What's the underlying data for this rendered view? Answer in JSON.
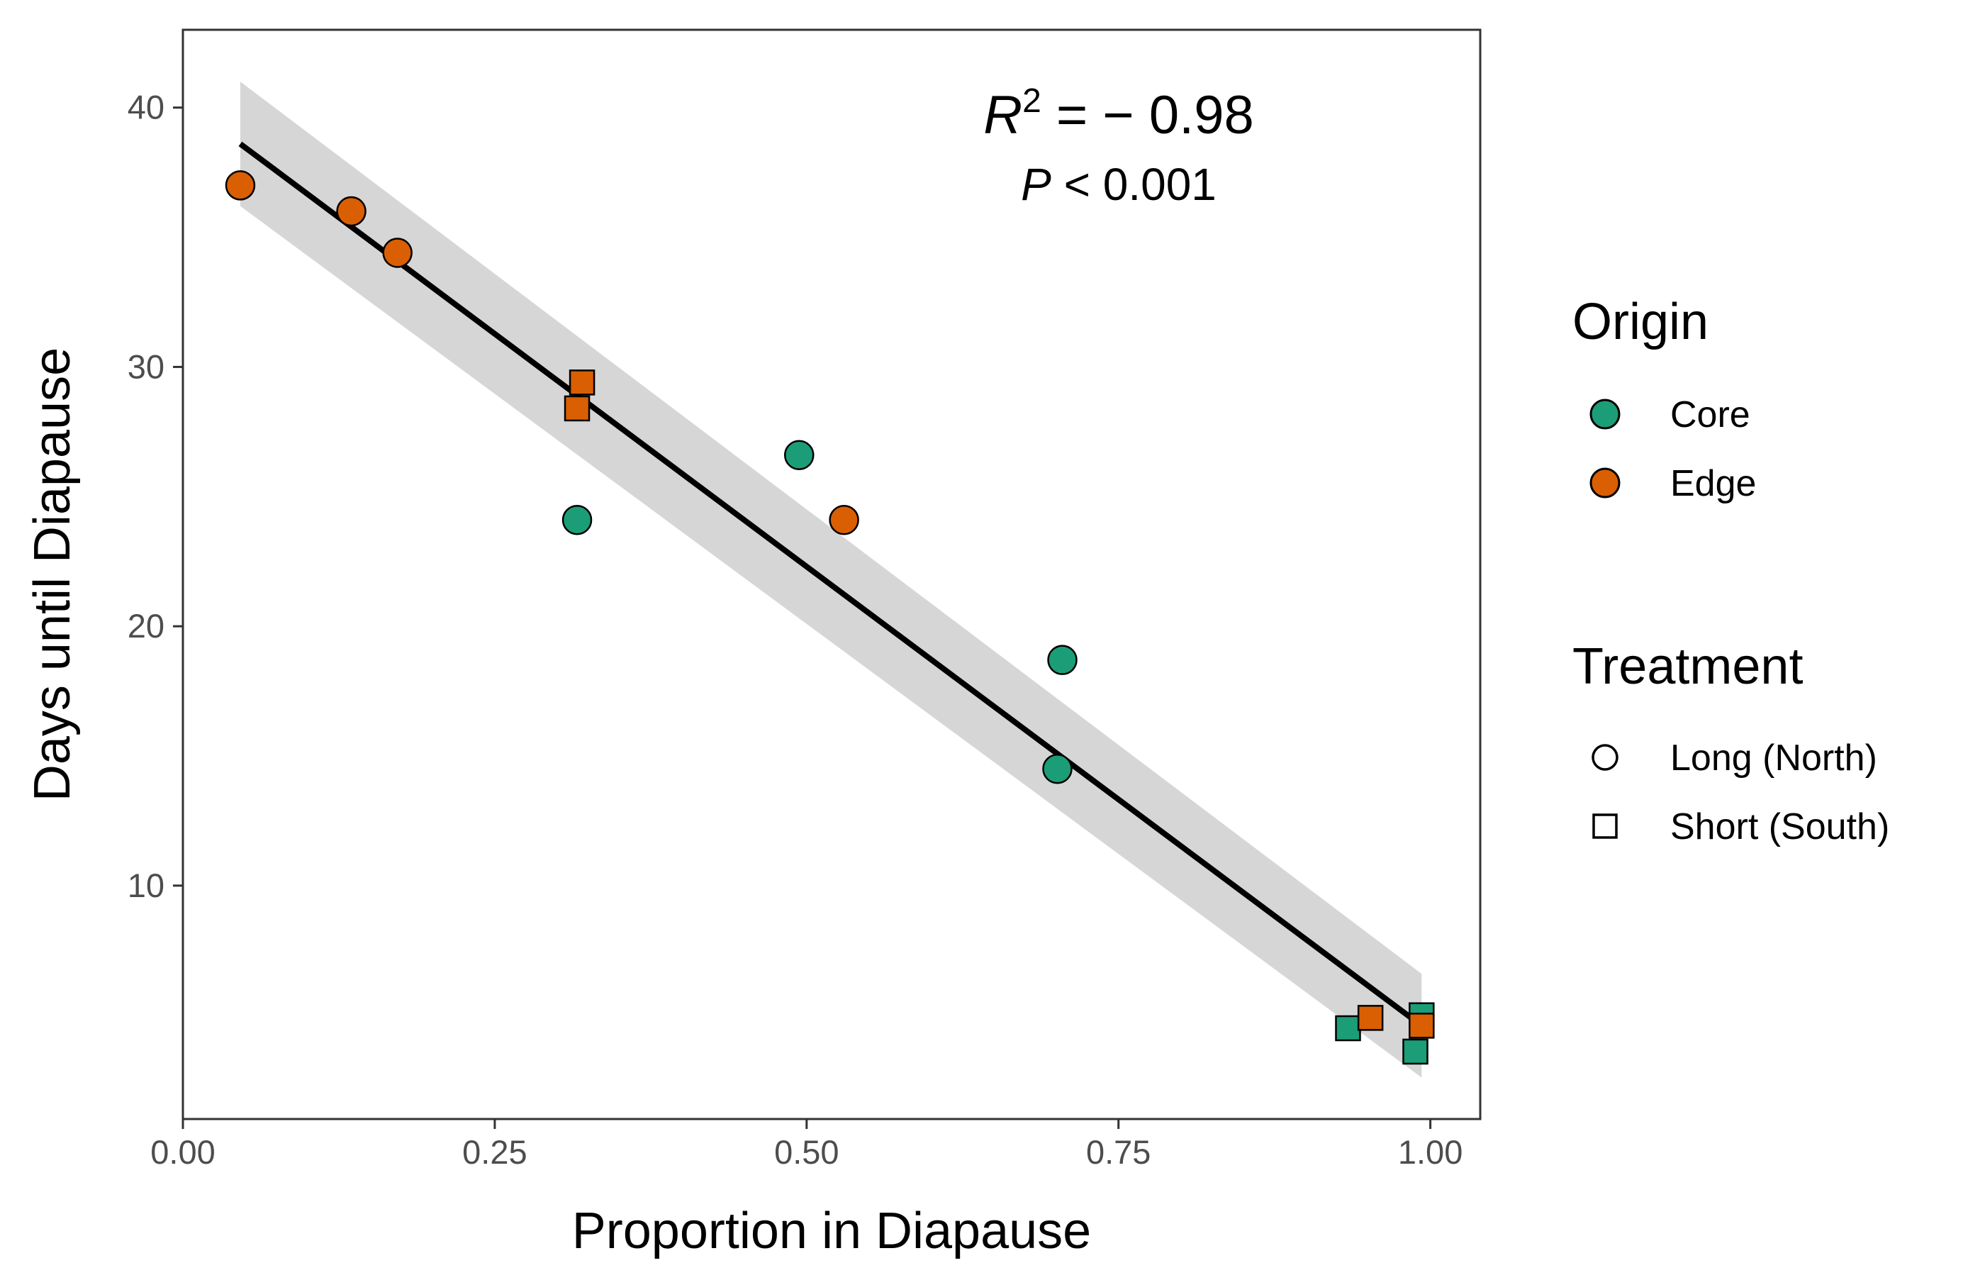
{
  "chart_data": {
    "type": "scatter",
    "xlabel": "Proportion in Diapause",
    "ylabel": "Days until Diapause",
    "xlim": [
      0.0,
      1.04
    ],
    "ylim": [
      1.0,
      43.0
    ],
    "x_ticks": [
      0.0,
      0.25,
      0.5,
      0.75,
      1.0
    ],
    "x_tick_labels": [
      "0.00",
      "0.25",
      "0.50",
      "0.75",
      "1.00"
    ],
    "y_ticks": [
      10,
      20,
      30,
      40
    ],
    "y_tick_labels": [
      "10",
      "20",
      "30",
      "40"
    ],
    "grid": false,
    "legend_position": "right",
    "colors": {
      "Core": "#1b9e77",
      "Edge": "#d95f02"
    },
    "annotation": {
      "r2_symbol": "R",
      "r2_exponent": "2",
      "r2_value": " = − 0.98",
      "p_symbol": "P",
      "p_value": " < 0.001"
    },
    "regression": {
      "x_range": [
        0.046,
        0.993
      ],
      "y_start": 38.6,
      "y_end": 4.6,
      "ci_start": [
        36.2,
        41.0
      ],
      "ci_end": [
        2.6,
        6.6
      ]
    },
    "legend": {
      "origin_title": "Origin",
      "origin_items": [
        "Core",
        "Edge"
      ],
      "treatment_title": "Treatment",
      "treatment_items": [
        "Long (North)",
        "Short (South)"
      ]
    },
    "points": [
      {
        "x": 0.046,
        "y": 37.0,
        "origin": "Edge",
        "treatment": "Long (North)"
      },
      {
        "x": 0.135,
        "y": 36.0,
        "origin": "Edge",
        "treatment": "Long (North)"
      },
      {
        "x": 0.172,
        "y": 34.4,
        "origin": "Edge",
        "treatment": "Long (North)"
      },
      {
        "x": 0.316,
        "y": 24.1,
        "origin": "Core",
        "treatment": "Long (North)"
      },
      {
        "x": 0.494,
        "y": 26.6,
        "origin": "Core",
        "treatment": "Long (North)"
      },
      {
        "x": 0.53,
        "y": 24.1,
        "origin": "Edge",
        "treatment": "Long (North)"
      },
      {
        "x": 0.701,
        "y": 14.5,
        "origin": "Core",
        "treatment": "Long (North)"
      },
      {
        "x": 0.705,
        "y": 18.7,
        "origin": "Core",
        "treatment": "Long (North)"
      },
      {
        "x": 0.32,
        "y": 29.4,
        "origin": "Edge",
        "treatment": "Short (South)"
      },
      {
        "x": 0.316,
        "y": 28.4,
        "origin": "Edge",
        "treatment": "Short (South)"
      },
      {
        "x": 0.934,
        "y": 4.5,
        "origin": "Core",
        "treatment": "Short (South)"
      },
      {
        "x": 0.952,
        "y": 4.9,
        "origin": "Edge",
        "treatment": "Short (South)"
      },
      {
        "x": 0.993,
        "y": 5.0,
        "origin": "Core",
        "treatment": "Short (South)"
      },
      {
        "x": 0.988,
        "y": 3.6,
        "origin": "Core",
        "treatment": "Short (South)"
      },
      {
        "x": 0.993,
        "y": 4.6,
        "origin": "Edge",
        "treatment": "Short (South)"
      }
    ]
  }
}
